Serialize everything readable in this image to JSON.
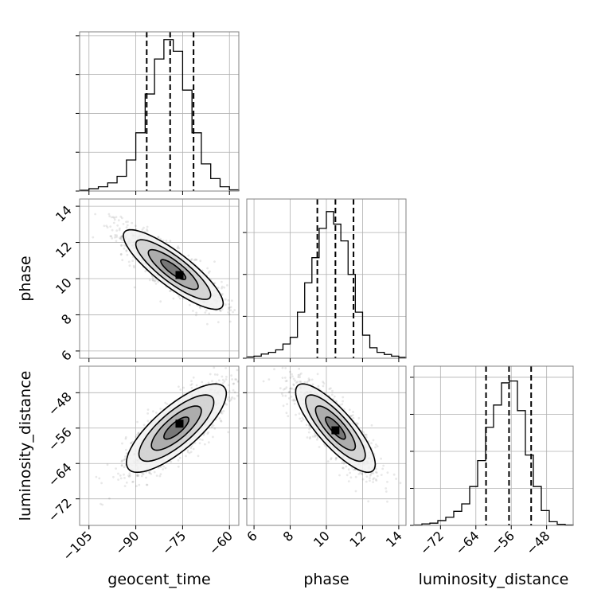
{
  "chart_data": {
    "type": "corner",
    "parameters": [
      "geocent_time",
      "phase",
      "luminosity_distance"
    ],
    "axes": {
      "geocent_time": {
        "label": "geocent_time",
        "range": [
          -108,
          -57
        ],
        "ticks": [
          -105,
          -90,
          -75,
          -60
        ],
        "tick_labels": [
          "−105",
          "−90",
          "−75",
          "−60"
        ]
      },
      "phase": {
        "label": "phase",
        "range": [
          5.6,
          14.4
        ],
        "ticks": [
          6,
          8,
          10,
          12,
          14
        ],
        "tick_labels": [
          "6",
          "8",
          "10",
          "12",
          "14"
        ]
      },
      "luminosity_distance": {
        "label": "luminosity_distance",
        "range": [
          -78,
          -42
        ],
        "ticks": [
          -72,
          -64,
          -56,
          -48
        ],
        "tick_labels": [
          "−72",
          "−64",
          "−56",
          "−48"
        ]
      }
    },
    "panels": [
      {
        "type": "histogram",
        "param": "geocent_time",
        "row": 0,
        "col": 0,
        "bin_edges": [
          -108,
          -105,
          -102,
          -99,
          -96,
          -93,
          -90,
          -87,
          -84,
          -81,
          -78,
          -75,
          -72,
          -69,
          -66,
          -63,
          -60,
          -57
        ],
        "counts": [
          2,
          6,
          11,
          21,
          38,
          80,
          150,
          250,
          340,
          390,
          360,
          260,
          150,
          70,
          32,
          11,
          3
        ],
        "quantiles": [
          -86.5,
          -79.0,
          -71.5
        ],
        "ylim": [
          0,
          410
        ],
        "gridlines_y": [
          100,
          200,
          300,
          400
        ]
      },
      {
        "type": "histogram",
        "param": "phase",
        "row": 1,
        "col": 1,
        "bin_edges": [
          5.6,
          6.0,
          6.4,
          6.8,
          7.2,
          7.6,
          8.0,
          8.4,
          8.8,
          9.2,
          9.6,
          10.0,
          10.4,
          10.8,
          11.2,
          11.6,
          12.0,
          12.4,
          12.8,
          13.2,
          13.6,
          14.0,
          14.4
        ],
        "counts": [
          3,
          5,
          10,
          14,
          20,
          34,
          50,
          110,
          180,
          240,
          310,
          350,
          320,
          280,
          200,
          110,
          55,
          25,
          14,
          9,
          5,
          2
        ],
        "quantiles": [
          9.5,
          10.5,
          11.5
        ],
        "ylim": [
          0,
          380
        ],
        "gridlines_y": [
          100,
          200,
          300
        ]
      },
      {
        "type": "histogram",
        "param": "luminosity_distance",
        "row": 2,
        "col": 2,
        "bin_edges": [
          -78,
          -76.2,
          -74.4,
          -72.6,
          -70.8,
          -69,
          -67.2,
          -65.4,
          -63.6,
          -61.8,
          -60,
          -58.2,
          -56.4,
          -54.6,
          -52.8,
          -51,
          -49.2,
          -47.4,
          -45.6,
          -43.8,
          -42
        ],
        "counts": [
          1,
          4,
          6,
          13,
          22,
          38,
          58,
          105,
          175,
          265,
          325,
          385,
          390,
          310,
          190,
          105,
          40,
          10,
          3,
          1
        ],
        "quantiles": [
          -61.7,
          -56.5,
          -51.5
        ],
        "ylim": [
          0,
          430
        ],
        "gridlines_y": [
          100,
          200,
          300,
          400
        ]
      },
      {
        "type": "2d-density",
        "x": "geocent_time",
        "y": "phase",
        "row": 1,
        "col": 0,
        "mean": [
          -78,
          10.5
        ],
        "std": [
          8,
          1.1
        ],
        "correlation": -0.85,
        "peak": [
          -76,
          10.2
        ],
        "contour_levels_sigma": [
          0.5,
          1.0,
          1.5,
          2.0
        ]
      },
      {
        "type": "2d-density",
        "x": "geocent_time",
        "y": "luminosity_distance",
        "row": 2,
        "col": 0,
        "mean": [
          -77,
          -56
        ],
        "std": [
          8,
          5
        ],
        "correlation": 0.78,
        "peak": [
          -76,
          -55
        ],
        "contour_levels_sigma": [
          0.5,
          1.0,
          1.5,
          2.0
        ]
      },
      {
        "type": "2d-density",
        "x": "phase",
        "y": "luminosity_distance",
        "row": 2,
        "col": 1,
        "mean": [
          10.5,
          -56
        ],
        "std": [
          1.1,
          5
        ],
        "correlation": -0.82,
        "peak": [
          10.5,
          -56.5
        ],
        "contour_levels_sigma": [
          0.5,
          1.0,
          1.5,
          2.0
        ]
      }
    ]
  }
}
